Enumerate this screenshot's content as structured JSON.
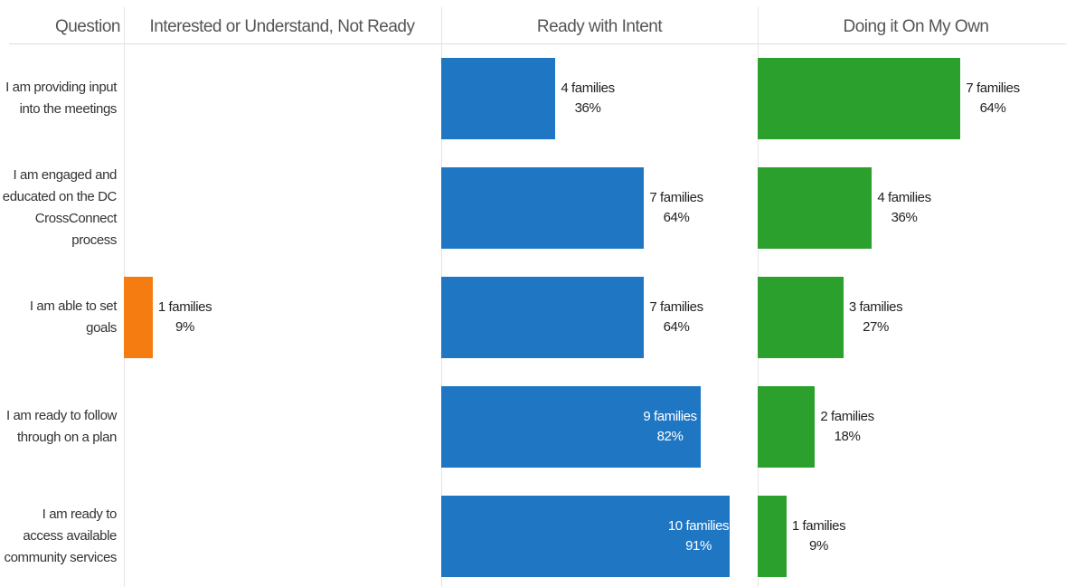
{
  "chart_data": {
    "type": "bar",
    "category_header": "Question",
    "categories": [
      "I am providing input into the meetings",
      "I am engaged and educated on the DC CrossConnect process",
      "I am able to set goals",
      "I am ready to follow through on a plan",
      "I am ready to access available community services"
    ],
    "series": [
      {
        "name": "Interested or Understand, Not Ready",
        "color": "#f57c10",
        "values": [
          null,
          null,
          1,
          null,
          null
        ],
        "value_labels": [
          null,
          null,
          "1 families",
          null,
          null
        ],
        "percents": [
          null,
          null,
          9,
          null,
          null
        ],
        "percent_labels": [
          null,
          null,
          "9%",
          null,
          null
        ]
      },
      {
        "name": "Ready with Intent",
        "color": "#1f77c4",
        "values": [
          4,
          7,
          7,
          9,
          10
        ],
        "value_labels": [
          "4 families",
          "7 families",
          "7 families",
          "9 families",
          "10 families"
        ],
        "percents": [
          36,
          64,
          64,
          82,
          91
        ],
        "percent_labels": [
          "36%",
          "64%",
          "64%",
          "82%",
          "91%"
        ]
      },
      {
        "name": "Doing it On My Own",
        "color": "#2ca02c",
        "values": [
          7,
          4,
          3,
          2,
          1
        ],
        "value_labels": [
          "7 families",
          "4 families",
          "3 families",
          "2 families",
          "1 families"
        ],
        "percents": [
          64,
          36,
          27,
          18,
          9
        ],
        "percent_labels": [
          "64%",
          "36%",
          "27%",
          "18%",
          "9%"
        ]
      }
    ]
  }
}
